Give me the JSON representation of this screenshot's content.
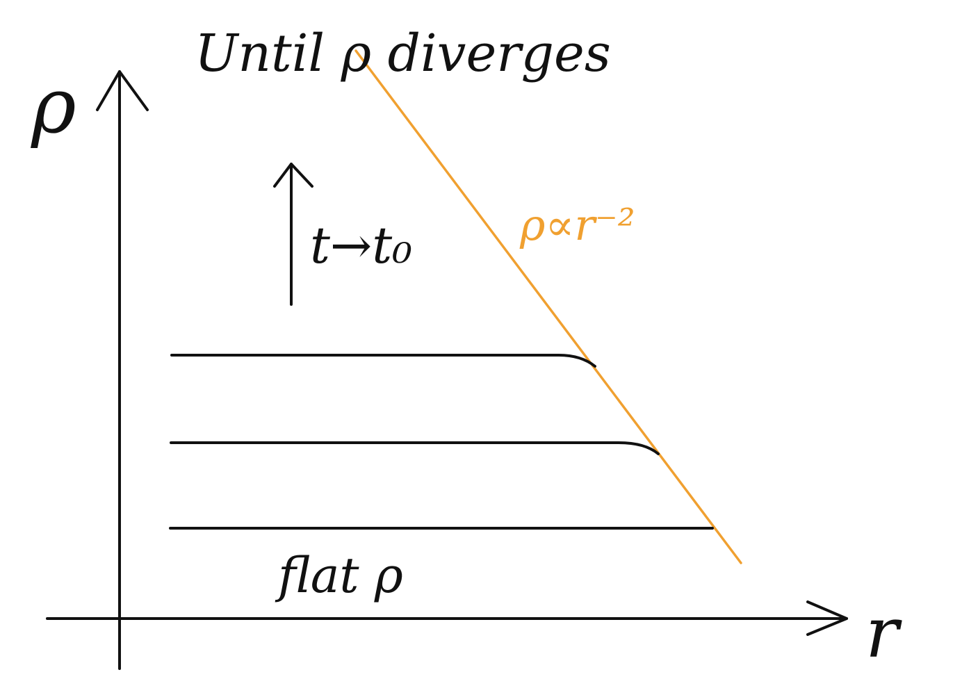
{
  "axes": {
    "y_label": "ρ",
    "x_label": "r"
  },
  "annotations": {
    "top_label": "Until ρ diverges",
    "time_label": "t→t₀",
    "power_law_label": "ρ∝r⁻²",
    "bottom_label": "flat ρ"
  },
  "colors": {
    "ink": "#111111",
    "power_law": "#f0a030"
  }
}
